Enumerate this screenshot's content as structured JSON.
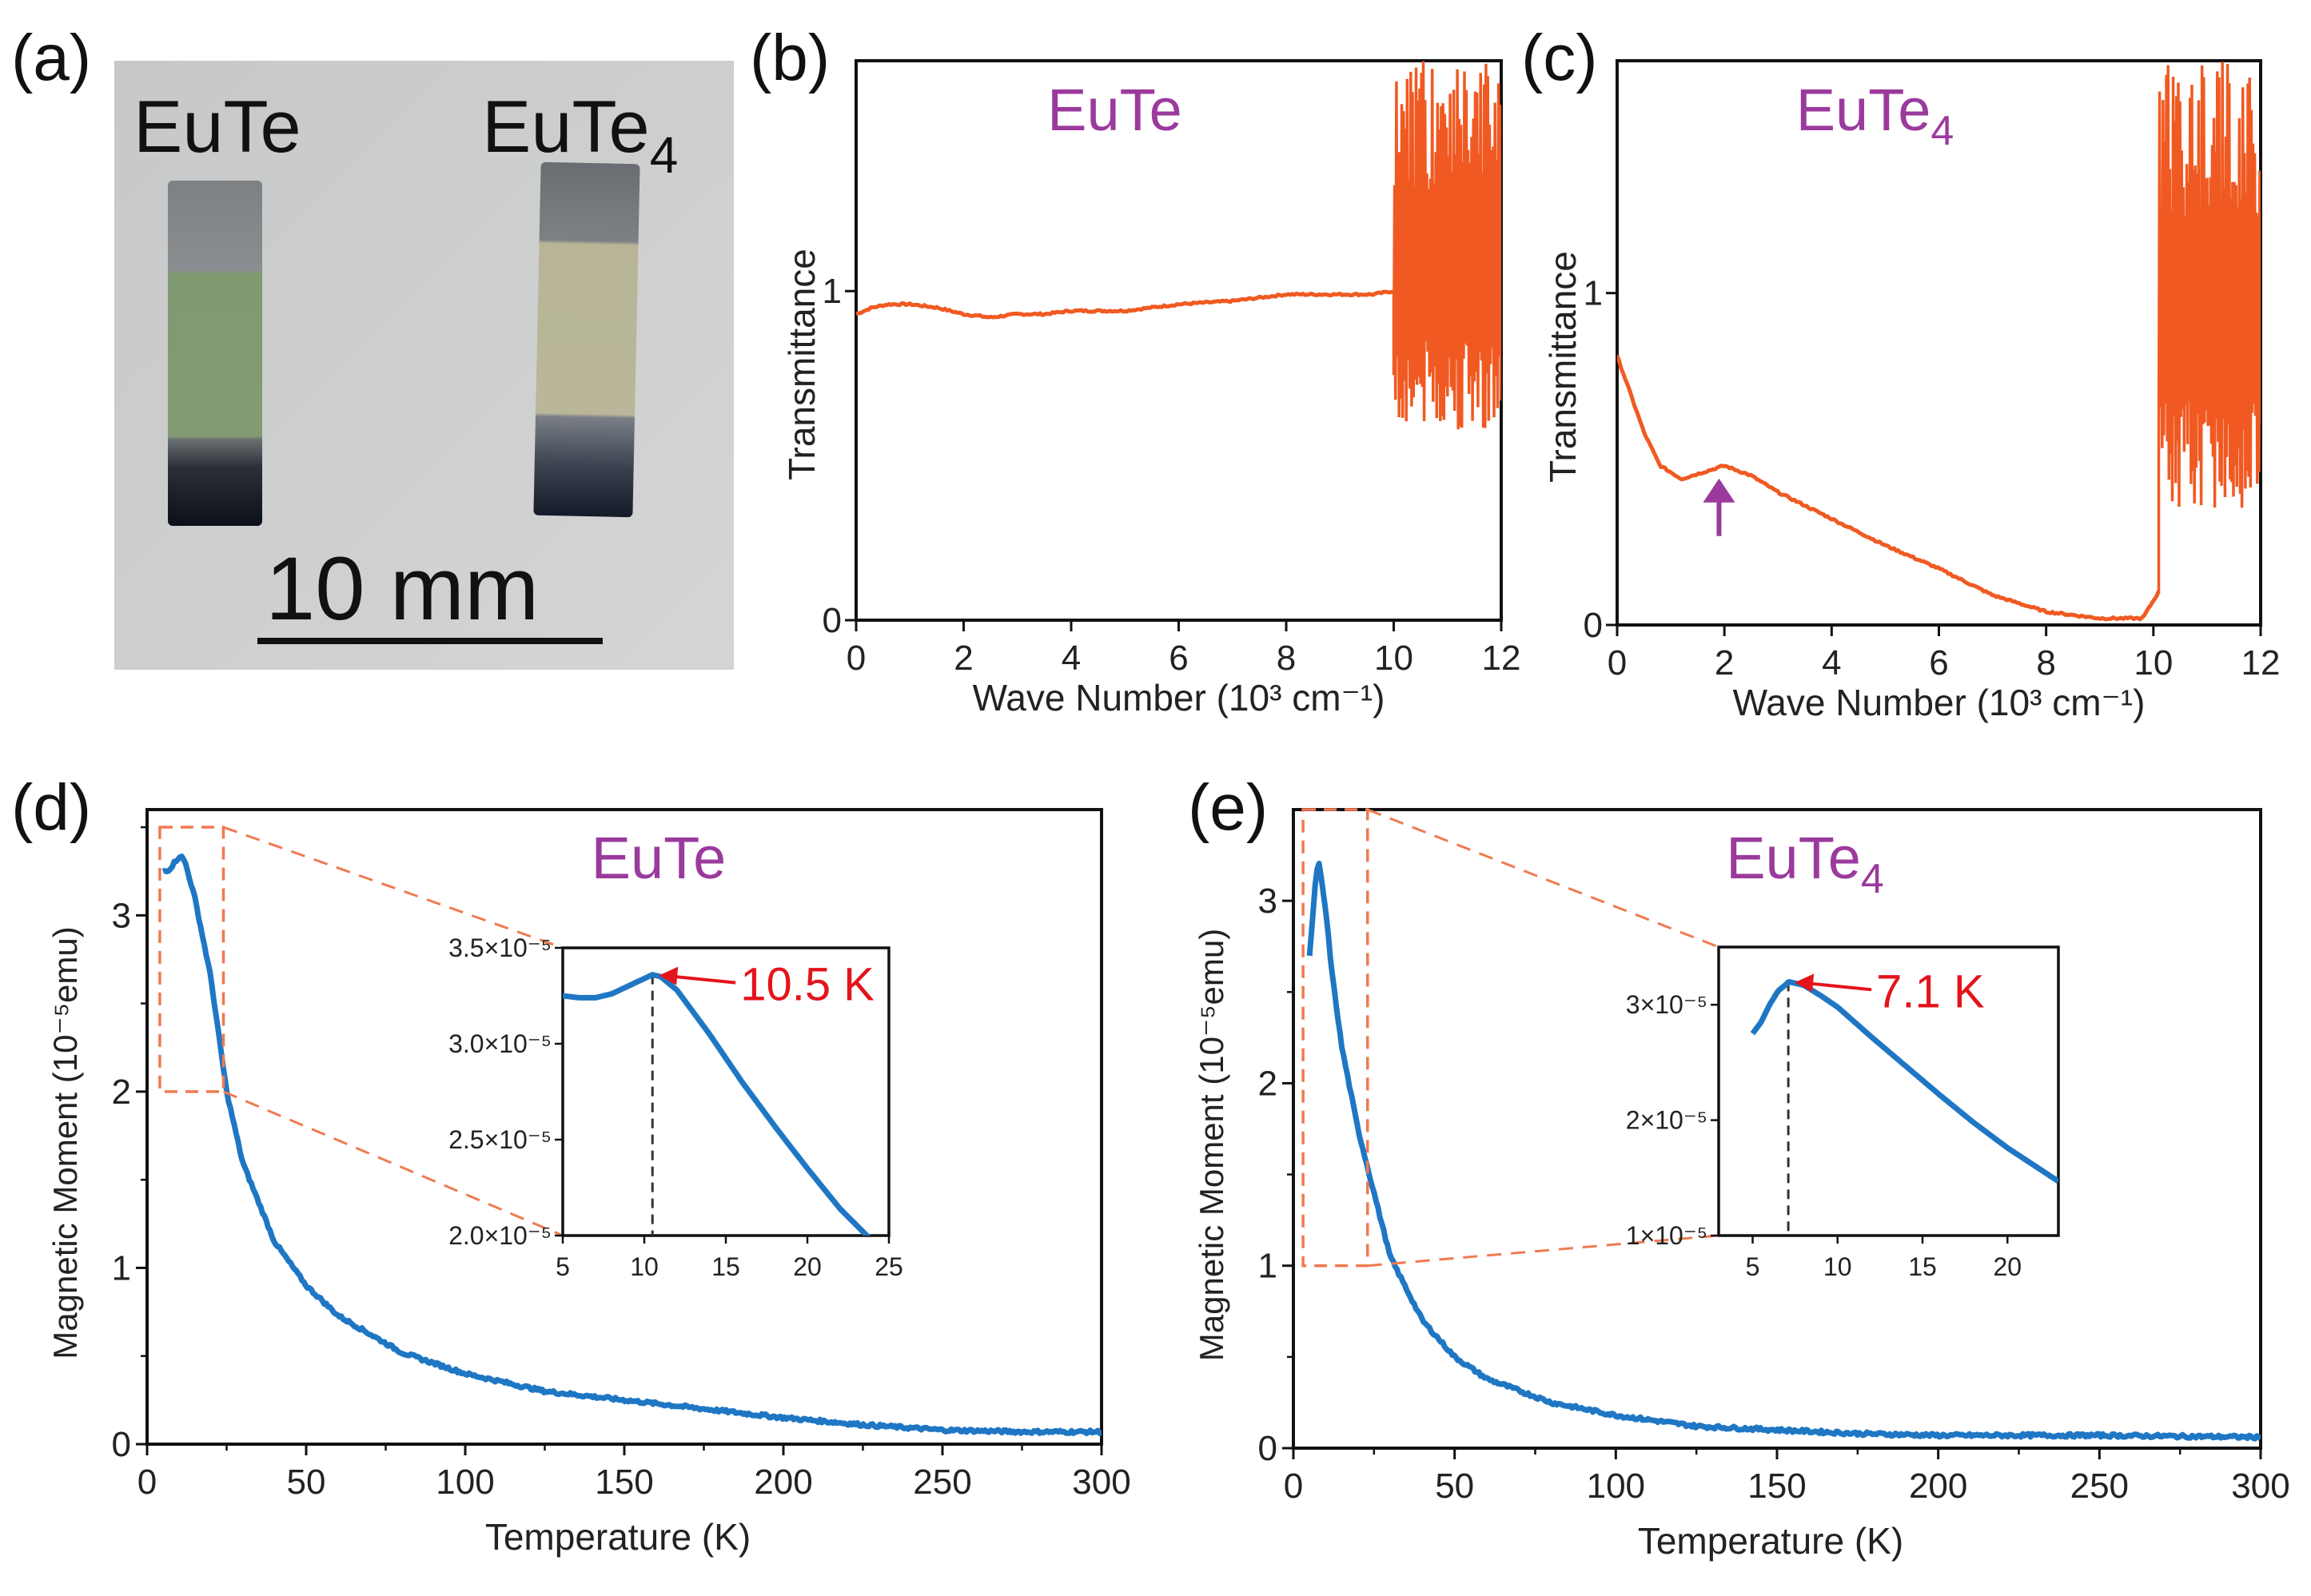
{
  "panels": {
    "a": {
      "label": "(a)",
      "sample_left": "EuTe",
      "sample_right_base": "EuTe",
      "sample_right_sub": "4",
      "scale_bar": "10 mm"
    },
    "b": {
      "label": "(b)"
    },
    "c": {
      "label": "(c)",
      "arrow": "peak-arrow"
    },
    "d": {
      "label": "(d)"
    },
    "e": {
      "label": "(e)"
    }
  },
  "colors": {
    "ir_line": "#f05a22",
    "mag_line": "#1f77c4",
    "title": "#9b3a9d",
    "annotation": "#e3141b",
    "zoom_box": "#f07a50"
  },
  "chart_data": [
    {
      "id": "b",
      "type": "line",
      "title": "EuTe",
      "xlabel": "Wave Number (10³ cm⁻¹)",
      "ylabel": "Transmittance",
      "xlim": [
        0,
        12
      ],
      "ylim": [
        0,
        1.7
      ],
      "xticks": [
        "0",
        "2",
        "4",
        "6",
        "8",
        "10",
        "12"
      ],
      "yticks": [
        "0",
        "1"
      ],
      "series": [
        {
          "name": "EuTe",
          "x": [
            0,
            0.3,
            0.6,
            1.0,
            1.5,
            2.0,
            2.5,
            3.0,
            3.5,
            4.0,
            5.0,
            6.0,
            7.0,
            8.0,
            9.0,
            9.6,
            10.0
          ],
          "y": [
            0.93,
            0.95,
            0.96,
            0.96,
            0.95,
            0.93,
            0.92,
            0.93,
            0.93,
            0.94,
            0.94,
            0.96,
            0.97,
            0.99,
            0.99,
            0.99,
            1.0
          ]
        }
      ],
      "noise_region": {
        "x_start": 10.0,
        "x_end": 12.0,
        "y_min": 0.58,
        "y_max": 1.7
      }
    },
    {
      "id": "c",
      "type": "line",
      "title": "EuTe",
      "title_sub": "4",
      "xlabel": "Wave Number (10³ cm⁻¹)",
      "ylabel": "Transmittance",
      "xlim": [
        0,
        12
      ],
      "ylim": [
        0,
        1.7
      ],
      "xticks": [
        "0",
        "2",
        "4",
        "6",
        "8",
        "10",
        "12"
      ],
      "yticks": [
        "0",
        "1"
      ],
      "series": [
        {
          "name": "EuTe4",
          "x": [
            0,
            0.2,
            0.5,
            0.8,
            1.2,
            1.6,
            2.0,
            2.5,
            3.0,
            4.0,
            5.0,
            6.0,
            7.0,
            8.0,
            9.0,
            9.8,
            10.1
          ],
          "y": [
            0.81,
            0.72,
            0.58,
            0.48,
            0.44,
            0.46,
            0.48,
            0.45,
            0.4,
            0.32,
            0.24,
            0.17,
            0.09,
            0.04,
            0.02,
            0.02,
            0.1
          ]
        }
      ],
      "arrow_at_x": 1.9,
      "noise_region": {
        "x_start": 10.1,
        "x_end": 12.0,
        "y_min": 0.35,
        "y_max": 1.7
      }
    },
    {
      "id": "d",
      "type": "line",
      "title": "EuTe",
      "xlabel": "Temperature (K)",
      "ylabel": "Magnetic Moment (10⁻⁵emu)",
      "xlim": [
        0,
        300
      ],
      "ylim": [
        0,
        3.6
      ],
      "xticks": [
        "0",
        "50",
        "100",
        "150",
        "200",
        "250",
        "300"
      ],
      "yticks": [
        "0",
        "1",
        "2",
        "3"
      ],
      "series": [
        {
          "name": "EuTe",
          "x": [
            5,
            7,
            9,
            10.5,
            12,
            15,
            20,
            25,
            30,
            40,
            50,
            60,
            80,
            100,
            125,
            150,
            175,
            200,
            225,
            250,
            275,
            300
          ],
          "y": [
            3.25,
            3.26,
            3.31,
            3.34,
            3.3,
            3.1,
            2.65,
            2.0,
            1.6,
            1.15,
            0.9,
            0.73,
            0.52,
            0.4,
            0.3,
            0.25,
            0.2,
            0.15,
            0.11,
            0.08,
            0.07,
            0.07
          ]
        }
      ],
      "zoom_box": {
        "x": [
          4,
          24
        ],
        "y": [
          2.0,
          3.5
        ]
      },
      "inset": {
        "xlim": [
          5,
          25
        ],
        "ylim": [
          2.0,
          3.5
        ],
        "xticks": [
          "5",
          "10",
          "15",
          "20",
          "25"
        ],
        "yticks": [
          "2.0×10⁻⁵",
          "2.5×10⁻⁵",
          "3.0×10⁻⁵",
          "3.5×10⁻⁵"
        ],
        "x": [
          5,
          6,
          7,
          8,
          9,
          10,
          10.5,
          11,
          12,
          14,
          16,
          18,
          20,
          22,
          24
        ],
        "y": [
          3.25,
          3.24,
          3.24,
          3.26,
          3.3,
          3.34,
          3.36,
          3.35,
          3.28,
          3.05,
          2.8,
          2.57,
          2.35,
          2.14,
          1.97
        ],
        "peak_x": 10.5,
        "annotation": "10.5 K"
      }
    },
    {
      "id": "e",
      "type": "line",
      "title": "EuTe",
      "title_sub": "4",
      "xlabel": "Temperature (K)",
      "ylabel": "Magnetic Moment (10⁻⁵emu)",
      "xlim": [
        0,
        300
      ],
      "ylim": [
        0,
        3.5
      ],
      "xticks": [
        "0",
        "50",
        "100",
        "150",
        "200",
        "250",
        "300"
      ],
      "yticks": [
        "0",
        "1",
        "2",
        "3"
      ],
      "series": [
        {
          "name": "EuTe4",
          "x": [
            5,
            6,
            7,
            8,
            10,
            12,
            15,
            20,
            25,
            30,
            40,
            50,
            60,
            80,
            100,
            125,
            150,
            175,
            200,
            250,
            300
          ],
          "y": [
            2.7,
            2.9,
            3.15,
            3.2,
            2.95,
            2.6,
            2.2,
            1.75,
            1.4,
            1.05,
            0.7,
            0.5,
            0.38,
            0.25,
            0.18,
            0.12,
            0.1,
            0.08,
            0.07,
            0.07,
            0.06
          ]
        }
      ],
      "zoom_box": {
        "x": [
          3,
          23
        ],
        "y": [
          1.0,
          3.5
        ]
      },
      "inset": {
        "xlim": [
          3,
          23
        ],
        "ylim": [
          1.0,
          3.5
        ],
        "xticks": [
          "5",
          "10",
          "15",
          "20"
        ],
        "yticks": [
          "1×10⁻⁵",
          "2×10⁻⁵",
          "3×10⁻⁵"
        ],
        "x": [
          5,
          5.5,
          6,
          6.5,
          7,
          7.1,
          8,
          9,
          10,
          12,
          14,
          16,
          18,
          20,
          23
        ],
        "y": [
          2.75,
          2.85,
          3.0,
          3.12,
          3.18,
          3.2,
          3.17,
          3.08,
          2.98,
          2.72,
          2.47,
          2.22,
          1.98,
          1.76,
          1.47
        ],
        "peak_x": 7.1,
        "annotation": "7.1 K"
      }
    }
  ]
}
